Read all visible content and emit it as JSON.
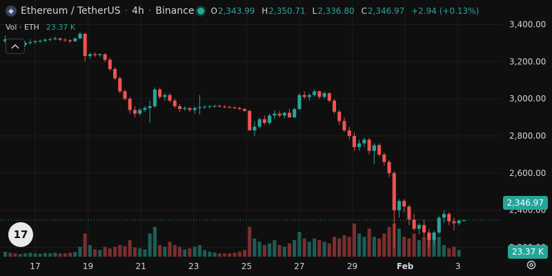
{
  "legend": {
    "logo_icon": "ethereum-icon",
    "pair": "Ethereum / TetherUS",
    "interval": "4h",
    "exchange": "Binance",
    "dot": "·",
    "ohlc": [
      {
        "key": "O",
        "value": "2,343.99"
      },
      {
        "key": "H",
        "value": "2,350.71"
      },
      {
        "key": "L",
        "value": "2,336.80"
      },
      {
        "key": "C",
        "value": "2,346.97"
      }
    ],
    "change": "+2.94 (+0.13%)"
  },
  "volume_legend": {
    "label": "Vol · ETH",
    "value": "23.37 K"
  },
  "price_axis": [
    "3,400.00",
    "3,200.00",
    "3,000.00",
    "2,800.00",
    "2,600.00",
    "2,400.00",
    "2,200.00"
  ],
  "time_axis": [
    "17",
    "19",
    "21",
    "23",
    "25",
    "27",
    "29",
    "Feb",
    "3"
  ],
  "last_price_label": "2,346.97",
  "volume_label": "23.37 K",
  "logo_text": "17",
  "colors": {
    "up": "#26a69a",
    "down": "#ef5350",
    "up_vol": "#1b5e57",
    "down_vol": "#7a2f2e",
    "grid": "#1c1c1e",
    "text": "#d1d4dc"
  },
  "chart_data": {
    "type": "candlestick",
    "ylim": [
      2150,
      3450
    ],
    "last_price": 2346.97,
    "candles": [
      [
        3310,
        3340,
        3300,
        3320
      ],
      [
        3320,
        3325,
        3290,
        3300
      ],
      [
        3300,
        3310,
        3260,
        3280
      ],
      [
        3280,
        3300,
        3270,
        3290
      ],
      [
        3290,
        3310,
        3280,
        3300
      ],
      [
        3300,
        3320,
        3290,
        3305
      ],
      [
        3305,
        3315,
        3295,
        3310
      ],
      [
        3310,
        3320,
        3300,
        3312
      ],
      [
        3312,
        3325,
        3305,
        3318
      ],
      [
        3318,
        3330,
        3310,
        3320
      ],
      [
        3320,
        3335,
        3315,
        3325
      ],
      [
        3325,
        3330,
        3310,
        3318
      ],
      [
        3318,
        3326,
        3306,
        3315
      ],
      [
        3315,
        3320,
        3300,
        3310
      ],
      [
        3310,
        3330,
        3305,
        3325
      ],
      [
        3325,
        3360,
        3320,
        3350
      ],
      [
        3350,
        3355,
        3200,
        3230
      ],
      [
        3230,
        3250,
        3215,
        3240
      ],
      [
        3240,
        3250,
        3225,
        3235
      ],
      [
        3235,
        3245,
        3225,
        3240
      ],
      [
        3240,
        3245,
        3200,
        3210
      ],
      [
        3210,
        3220,
        3150,
        3160
      ],
      [
        3160,
        3170,
        3100,
        3110
      ],
      [
        3110,
        3120,
        3030,
        3040
      ],
      [
        3040,
        3050,
        2990,
        3000
      ],
      [
        3000,
        3010,
        2920,
        2940
      ],
      [
        2940,
        2960,
        2900,
        2920
      ],
      [
        2920,
        2950,
        2910,
        2940
      ],
      [
        2940,
        2960,
        2930,
        2950
      ],
      [
        2950,
        2990,
        2870,
        2960
      ],
      [
        2960,
        3060,
        2950,
        3050
      ],
      [
        3050,
        3060,
        3000,
        3010
      ],
      [
        3010,
        3030,
        2990,
        3020
      ],
      [
        3020,
        3030,
        2980,
        2990
      ],
      [
        2990,
        3000,
        2950,
        2960
      ],
      [
        2960,
        2970,
        2930,
        2945
      ],
      [
        2945,
        2960,
        2935,
        2950
      ],
      [
        2950,
        2955,
        2930,
        2940
      ],
      [
        2940,
        2960,
        2920,
        2950
      ],
      [
        2950,
        3020,
        2915,
        2955
      ],
      [
        2955,
        2965,
        2945,
        2958
      ],
      [
        2958,
        2966,
        2948,
        2960
      ],
      [
        2960,
        2968,
        2952,
        2962
      ],
      [
        2962,
        2968,
        2954,
        2958
      ],
      [
        2958,
        2965,
        2950,
        2956
      ],
      [
        2956,
        2962,
        2948,
        2953
      ],
      [
        2953,
        2960,
        2945,
        2950
      ],
      [
        2950,
        2956,
        2940,
        2945
      ],
      [
        2945,
        2950,
        2930,
        2935
      ],
      [
        2935,
        2940,
        2840,
        2830
      ],
      [
        2830,
        2880,
        2800,
        2850
      ],
      [
        2850,
        2900,
        2840,
        2890
      ],
      [
        2890,
        2910,
        2860,
        2870
      ],
      [
        2870,
        2920,
        2860,
        2910
      ],
      [
        2910,
        2940,
        2890,
        2920
      ],
      [
        2920,
        2935,
        2900,
        2910
      ],
      [
        2910,
        2930,
        2895,
        2925
      ],
      [
        2925,
        2945,
        2900,
        2900
      ],
      [
        2900,
        2950,
        2895,
        2945
      ],
      [
        2945,
        3030,
        2940,
        3020
      ],
      [
        3020,
        3040,
        3000,
        3010
      ],
      [
        3010,
        3030,
        2990,
        3020
      ],
      [
        3020,
        3050,
        3010,
        3040
      ],
      [
        3040,
        3045,
        3000,
        3010
      ],
      [
        3010,
        3040,
        3000,
        3030
      ],
      [
        3030,
        3035,
        2980,
        2990
      ],
      [
        2990,
        3000,
        2920,
        2930
      ],
      [
        2930,
        2940,
        2860,
        2880
      ],
      [
        2880,
        2900,
        2820,
        2830
      ],
      [
        2830,
        2850,
        2780,
        2800
      ],
      [
        2800,
        2820,
        2720,
        2740
      ],
      [
        2740,
        2780,
        2720,
        2760
      ],
      [
        2760,
        2790,
        2740,
        2780
      ],
      [
        2780,
        2790,
        2700,
        2720
      ],
      [
        2720,
        2760,
        2650,
        2750
      ],
      [
        2750,
        2760,
        2690,
        2700
      ],
      [
        2700,
        2710,
        2640,
        2660
      ],
      [
        2660,
        2670,
        2580,
        2600
      ],
      [
        2600,
        2610,
        2200,
        2400
      ],
      [
        2400,
        2460,
        2360,
        2450
      ],
      [
        2450,
        2460,
        2390,
        2420
      ],
      [
        2420,
        2430,
        2320,
        2350
      ],
      [
        2350,
        2380,
        2290,
        2300
      ],
      [
        2300,
        2330,
        2270,
        2320
      ],
      [
        2320,
        2350,
        2260,
        2280
      ],
      [
        2280,
        2300,
        2200,
        2240
      ],
      [
        2240,
        2290,
        2210,
        2280
      ],
      [
        2280,
        2370,
        2270,
        2360
      ],
      [
        2360,
        2400,
        2330,
        2380
      ],
      [
        2380,
        2390,
        2320,
        2340
      ],
      [
        2340,
        2360,
        2290,
        2330
      ],
      [
        2330,
        2350,
        2320,
        2344
      ],
      [
        2344,
        2351,
        2337,
        2347
      ]
    ],
    "volumes": [
      0.15,
      0.12,
      0.1,
      0.08,
      0.1,
      0.12,
      0.1,
      0.09,
      0.11,
      0.1,
      0.12,
      0.1,
      0.1,
      0.12,
      0.14,
      0.3,
      0.7,
      0.35,
      0.22,
      0.2,
      0.3,
      0.25,
      0.3,
      0.35,
      0.32,
      0.5,
      0.28,
      0.25,
      0.22,
      0.7,
      0.9,
      0.35,
      0.3,
      0.45,
      0.35,
      0.3,
      0.22,
      0.25,
      0.3,
      0.35,
      0.2,
      0.15,
      0.12,
      0.1,
      0.1,
      0.1,
      0.12,
      0.15,
      0.2,
      0.9,
      0.55,
      0.45,
      0.35,
      0.4,
      0.5,
      0.35,
      0.3,
      0.4,
      0.5,
      0.75,
      0.55,
      0.45,
      0.55,
      0.5,
      0.45,
      0.4,
      0.6,
      0.55,
      0.65,
      0.6,
      1.0,
      0.7,
      0.6,
      0.85,
      0.6,
      0.55,
      0.7,
      0.9,
      1.0,
      0.85,
      0.6,
      0.55,
      0.7,
      0.5,
      0.6,
      0.7,
      0.55,
      0.6,
      0.35,
      0.25,
      0.3,
      0.2
    ]
  }
}
